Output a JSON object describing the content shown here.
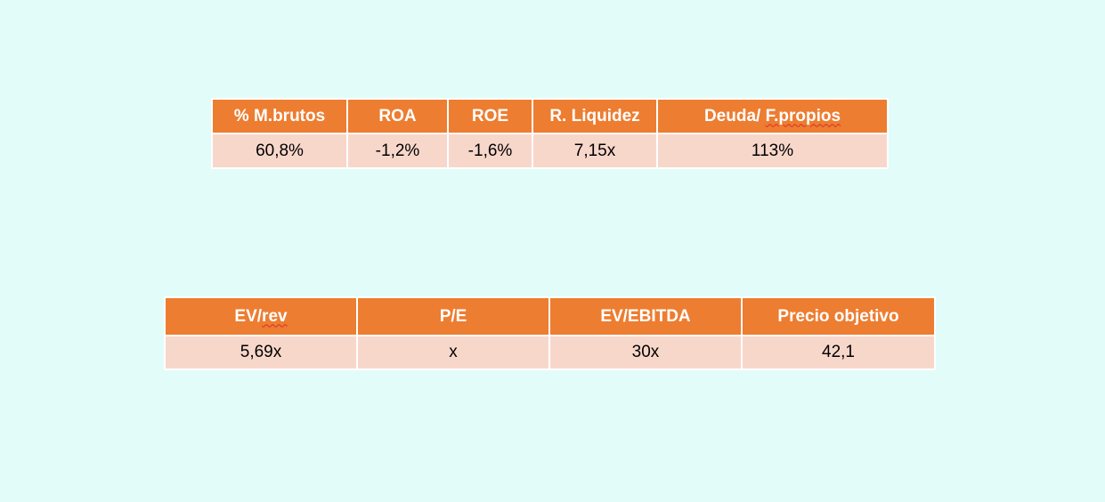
{
  "ratios": {
    "headers": [
      "% M.brutos",
      "ROA",
      "ROE",
      "R. Liquidez",
      "Deuda/ ",
      "F.propios"
    ],
    "values": [
      "60,8%",
      "-1,2%",
      "-1,6%",
      "7,15x",
      "113%"
    ]
  },
  "valuation": {
    "headers": [
      "EV/",
      "rev",
      "P/E",
      "EV/EBITDA",
      "Precio objetivo"
    ],
    "values": [
      "5,69x",
      "x",
      "30x",
      "42,1"
    ]
  },
  "colors": {
    "background": "#e2fdf9",
    "header_fill": "#ed7d31",
    "cell_fill": "#f8d7cb",
    "header_text": "#ffffff",
    "spellcheck_underline": "#d93025"
  }
}
